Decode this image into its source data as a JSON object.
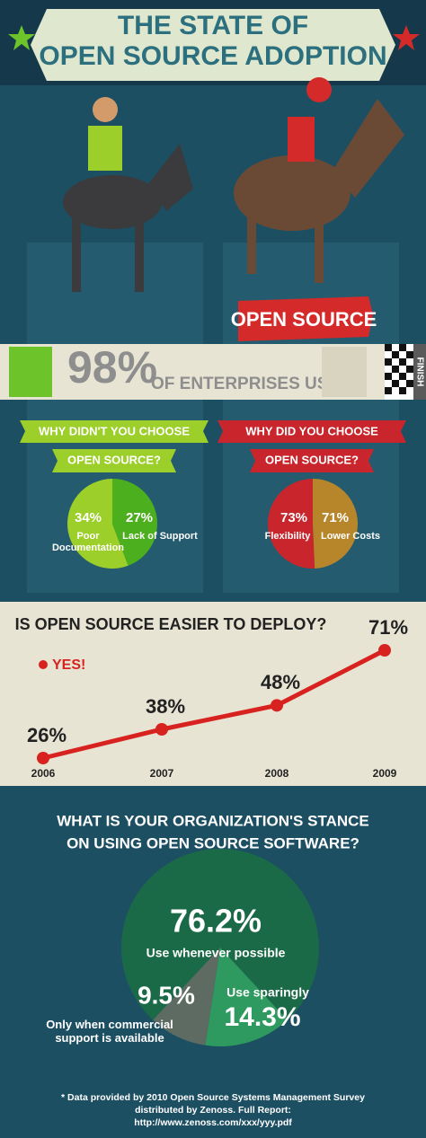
{
  "header": {
    "title": [
      "THE STATE OF",
      "OPEN SOURCE ADOPTION"
    ]
  },
  "banner": {
    "label": "OPEN SOURCE",
    "value_label": "98%",
    "text": "OF ENTERPRISES USE",
    "finish": "FINISH"
  },
  "chart_data": [
    {
      "type": "pie",
      "title": [
        "WHY DIDN'T YOU CHOOSE",
        "OPEN SOURCE?"
      ],
      "categories": [
        "Poor Documentation",
        "Lack of Support"
      ],
      "values": [
        34,
        27
      ],
      "value_labels": [
        "34%",
        "27%"
      ],
      "colors": [
        "#9ccf2a",
        "#4caf1e"
      ]
    },
    {
      "type": "pie",
      "title": [
        "WHY DID YOU CHOOSE",
        "OPEN SOURCE?"
      ],
      "categories": [
        "Flexibility",
        "Lower Costs"
      ],
      "values": [
        73,
        71
      ],
      "value_labels": [
        "73%",
        "71%"
      ],
      "colors": [
        "#c8262c",
        "#b8862a"
      ]
    },
    {
      "type": "line",
      "title": "IS OPEN SOURCE EASIER TO DEPLOY?",
      "categories": [
        "2006",
        "2007",
        "2008",
        "2009"
      ],
      "series": [
        {
          "name": "YES!",
          "color": "#d8221f",
          "values": [
            26,
            38,
            48,
            71
          ],
          "value_labels": [
            "26%",
            "38%",
            "48%",
            "71%"
          ]
        }
      ],
      "ylim": [
        20,
        80
      ]
    },
    {
      "type": "pie",
      "title": [
        "WHAT IS YOUR ORGANIZATION'S STANCE",
        "ON USING OPEN SOURCE SOFTWARE?"
      ],
      "categories": [
        "Use whenever possible",
        "Only when commercial support is available",
        "Use sparingly"
      ],
      "values": [
        76.2,
        9.5,
        14.3
      ],
      "value_labels": [
        "76.2%",
        "9.5%",
        "14.3%"
      ],
      "colors": [
        "#1b6a47",
        "#5d6b63",
        "#2e9a5f"
      ]
    }
  ],
  "footnote": "* Data provided by 2010 Open Source Systems Management Survey distributed by Zenoss. Full Report: http://www.zenoss.com/xxx/yyy.pdf"
}
